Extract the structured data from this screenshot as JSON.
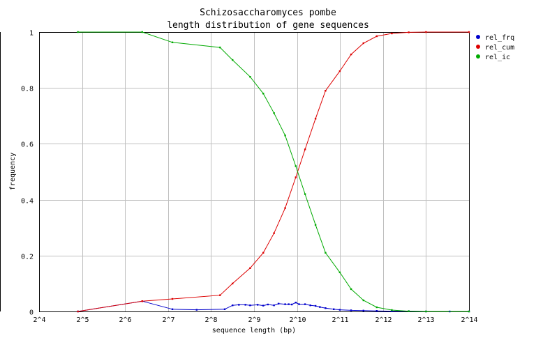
{
  "chart_data": {
    "type": "line",
    "title": "Schizosaccharomyces pombe",
    "subtitle": "length distribution of gene sequences",
    "xlabel": "sequence length (bp)",
    "ylabel": "frequency",
    "x_scale": "log2",
    "xlim": [
      16,
      16384
    ],
    "ylim": [
      0,
      1
    ],
    "x_ticks": [
      "2^4",
      "2^5",
      "2^6",
      "2^7",
      "2^8",
      "2^9",
      "2^10",
      "2^11",
      "2^12",
      "2^13",
      "2^14"
    ],
    "y_ticks": [
      "0",
      "0.2",
      "0.4",
      "0.6",
      "0.8",
      "1"
    ],
    "grid": true,
    "legend": "right",
    "series": [
      {
        "name": "rel_frq",
        "color": "#0000cc",
        "x": [
          29.9,
          84.4,
          137.2,
          203.0,
          319.0,
          362.0,
          401.0,
          446.0,
          481.0,
          542.0,
          594.0,
          640.0,
          706.0,
          760.0,
          846.0,
          895.0,
          941.0,
          1004.0,
          1058.0,
          1166.0,
          1270.0,
          1380.0,
          1480.0,
          1620.0,
          1850.0,
          2040.0,
          2450.0,
          2990.0,
          3700.0,
          4720.0,
          6200.0,
          8190.0,
          12000.0,
          16384.0
        ],
        "y": [
          0.0,
          0.037,
          0.008,
          0.006,
          0.008,
          0.022,
          0.024,
          0.024,
          0.022,
          0.024,
          0.021,
          0.025,
          0.022,
          0.028,
          0.026,
          0.026,
          0.025,
          0.032,
          0.026,
          0.026,
          0.022,
          0.02,
          0.016,
          0.012,
          0.008,
          0.006,
          0.004,
          0.003,
          0.002,
          0.001,
          0.001,
          0.0,
          0.0,
          0.0
        ]
      },
      {
        "name": "rel_cum",
        "color": "#dd0000",
        "x": [
          29.9,
          84.4,
          137.2,
          296.0,
          362.0,
          481.0,
          594.0,
          706.0,
          846.0,
          1004.0,
          1166.0,
          1380.0,
          1620.0,
          2040.0,
          2450.0,
          2990.0,
          3700.0,
          4720.0,
          6200.0,
          8190.0,
          16384.0
        ],
        "y": [
          0.0,
          0.037,
          0.045,
          0.058,
          0.1,
          0.155,
          0.21,
          0.28,
          0.37,
          0.48,
          0.58,
          0.69,
          0.79,
          0.86,
          0.92,
          0.96,
          0.985,
          0.995,
          0.999,
          1.0,
          1.0
        ]
      },
      {
        "name": "rel_ic",
        "color": "#00aa00",
        "x": [
          29.9,
          84.4,
          137.2,
          296.0,
          362.0,
          481.0,
          594.0,
          706.0,
          846.0,
          1004.0,
          1166.0,
          1380.0,
          1620.0,
          2040.0,
          2450.0,
          2990.0,
          3700.0,
          4720.0,
          6200.0,
          8190.0,
          16384.0
        ],
        "y": [
          1.0,
          1.0,
          0.963,
          0.945,
          0.9,
          0.84,
          0.78,
          0.71,
          0.63,
          0.52,
          0.42,
          0.31,
          0.21,
          0.14,
          0.08,
          0.04,
          0.015,
          0.005,
          0.001,
          0.0,
          0.0
        ]
      }
    ]
  }
}
